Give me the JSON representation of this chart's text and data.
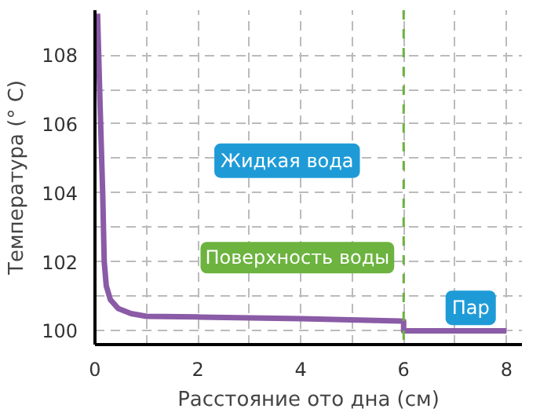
{
  "chart_data": {
    "type": "line",
    "xlabel": "Расстояние ото дна (см)",
    "ylabel": "Температура (° C)",
    "xlim": [
      0,
      8.3
    ],
    "ylim": [
      99.6,
      109.3
    ],
    "xticks": [
      0,
      {
        "value": 1,
        "label": null
      },
      2,
      {
        "value": 3,
        "label": null
      },
      4,
      {
        "value": 5,
        "label": null
      },
      6,
      {
        "value": 7,
        "label": null
      },
      8
    ],
    "yticks": [
      100,
      {
        "value": 101,
        "label": null
      },
      102,
      {
        "value": 103,
        "label": null
      },
      104,
      {
        "value": 105,
        "label": null
      },
      106,
      {
        "value": 107,
        "label": null
      },
      108
    ],
    "grid": true,
    "line_style": "solid",
    "series": [
      {
        "color": "#8a5ba6",
        "x": [
          0.05,
          0.1,
          0.15,
          0.18,
          0.22,
          0.3,
          0.45,
          0.7,
          1.0,
          2.0,
          4.0,
          6.0,
          6.0,
          8.0
        ],
        "values": [
          109.2,
          106.5,
          104.0,
          102.0,
          101.3,
          100.9,
          100.65,
          100.5,
          100.42,
          100.4,
          100.35,
          100.28,
          100.0,
          100.0
        ]
      }
    ],
    "ref_lines": [
      {
        "axis": "x",
        "value": 6,
        "label": "Поверхность воды",
        "color": "#6cb33f",
        "line_style": "dashed"
      }
    ],
    "annotations": [
      "Жидкая вода",
      "Пар"
    ]
  }
}
